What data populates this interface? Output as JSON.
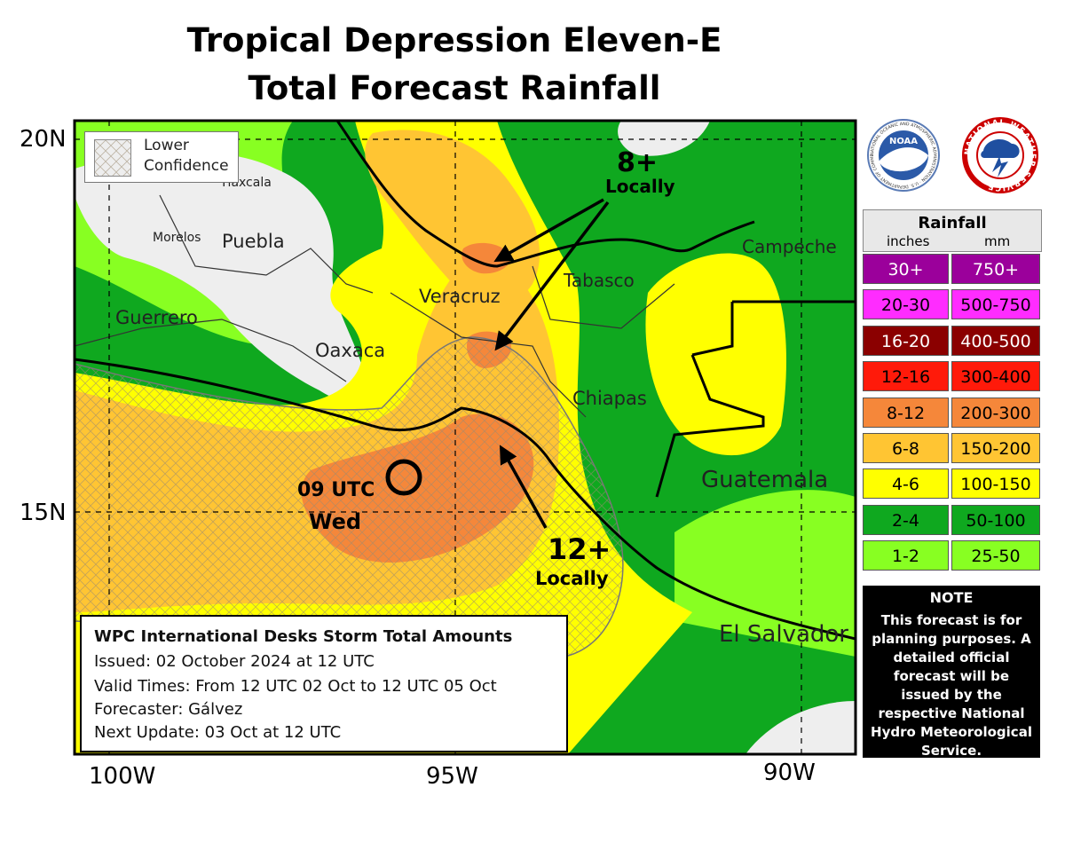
{
  "title": {
    "line1": "Tropical Depression Eleven-E",
    "line2": "Total Forecast Rainfall"
  },
  "axes": {
    "lat_labels": [
      "20N",
      "15N"
    ],
    "lon_labels": [
      "100W",
      "95W",
      "90W"
    ]
  },
  "places": {
    "tlaxcala": "Tlaxcala",
    "morelos": "Morelos",
    "puebla": "Puebla",
    "guerrero": "Guerrero",
    "veracruz": "Veracruz",
    "oaxaca": "Oaxaca",
    "tabasco": "Tabasco",
    "campeche": "Campeche",
    "chiapas": "Chiapas",
    "guatemala": "Guatemala",
    "el_salvador": "El Salvador"
  },
  "annotations": {
    "top_amount": "8+",
    "top_locally": "Locally",
    "bottom_amount": "12+",
    "bottom_locally": "Locally",
    "storm_time": "09 UTC",
    "storm_day": "Wed"
  },
  "confidence_legend": {
    "line1": "Lower",
    "line2": "Confidence"
  },
  "info_box": {
    "heading": "WPC International Desks Storm Total Amounts",
    "issued": "Issued:  02 October 2024 at 12 UTC",
    "valid": "Valid Times:  From 12 UTC 02 Oct  to  12 UTC 05 Oct",
    "forecaster": "Forecaster: Gálvez",
    "next_update": "Next Update: 03 Oct at 12 UTC"
  },
  "logos": {
    "noaa_icon": "noaa-logo-icon",
    "nws_icon": "nws-logo-icon",
    "noaa_text": "NOAA",
    "noaa_ring": "NATIONAL OCEANIC AND ATMOSPHERIC ADMINISTRATION · U.S. DEPARTMENT OF COMMERCE",
    "nws_ring": "NATIONAL WEATHER SERVICE"
  },
  "legend": {
    "title": "Rainfall",
    "unit_in": "inches",
    "unit_mm": "mm",
    "rows": [
      {
        "inches": "30+",
        "mm": "750+",
        "color": "#9b009b",
        "text": "#ffffff"
      },
      {
        "inches": "20-30",
        "mm": "500-750",
        "color": "#ff2cff",
        "text": "#000000"
      },
      {
        "inches": "16-20",
        "mm": "400-500",
        "color": "#8b0000",
        "text": "#ffffff"
      },
      {
        "inches": "12-16",
        "mm": "300-400",
        "color": "#ff1a0a",
        "text": "#000000"
      },
      {
        "inches": "8-12",
        "mm": "200-300",
        "color": "#f5873a",
        "text": "#000000"
      },
      {
        "inches": "6-8",
        "mm": "150-200",
        "color": "#ffc533",
        "text": "#000000"
      },
      {
        "inches": "4-6",
        "mm": "100-150",
        "color": "#ffff00",
        "text": "#000000"
      },
      {
        "inches": "2-4",
        "mm": "50-100",
        "color": "#0fa81f",
        "text": "#000000"
      },
      {
        "inches": "1-2",
        "mm": "25-50",
        "color": "#88ff22",
        "text": "#000000"
      }
    ]
  },
  "note": {
    "heading": "NOTE",
    "body": "This forecast is for planning purposes. A detailed official forecast will be issued by the respective National Hydro Meteorological Service."
  }
}
